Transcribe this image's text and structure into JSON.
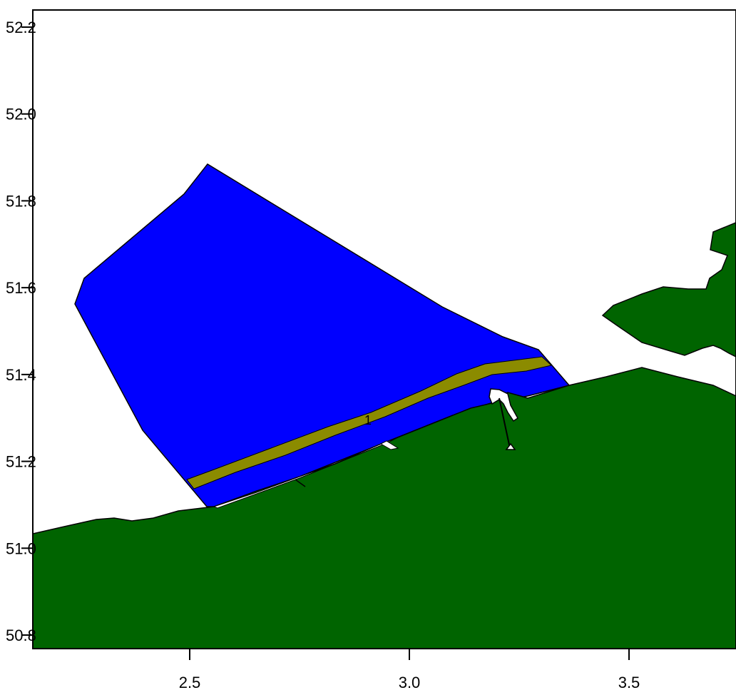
{
  "map": {
    "x_ticks": [
      {
        "value": 2.5,
        "label": "2.5"
      },
      {
        "value": 3.0,
        "label": "3.0"
      },
      {
        "value": 3.5,
        "label": "3.5"
      }
    ],
    "y_ticks": [
      {
        "value": 52.2,
        "label": "52.2"
      },
      {
        "value": 52.0,
        "label": "52.0"
      },
      {
        "value": 51.8,
        "label": "51.8"
      },
      {
        "value": 51.6,
        "label": "51.6"
      },
      {
        "value": 51.4,
        "label": "51.4"
      },
      {
        "value": 51.2,
        "label": "51.2"
      },
      {
        "value": 51.0,
        "label": "51.0"
      },
      {
        "value": 50.8,
        "label": "50.8"
      }
    ],
    "zone_label": "1",
    "colors": {
      "land": "#006400",
      "sea_zone": "#0000ff",
      "band": "#8b8b00",
      "background": "#ffffff",
      "outline": "#000000"
    }
  }
}
